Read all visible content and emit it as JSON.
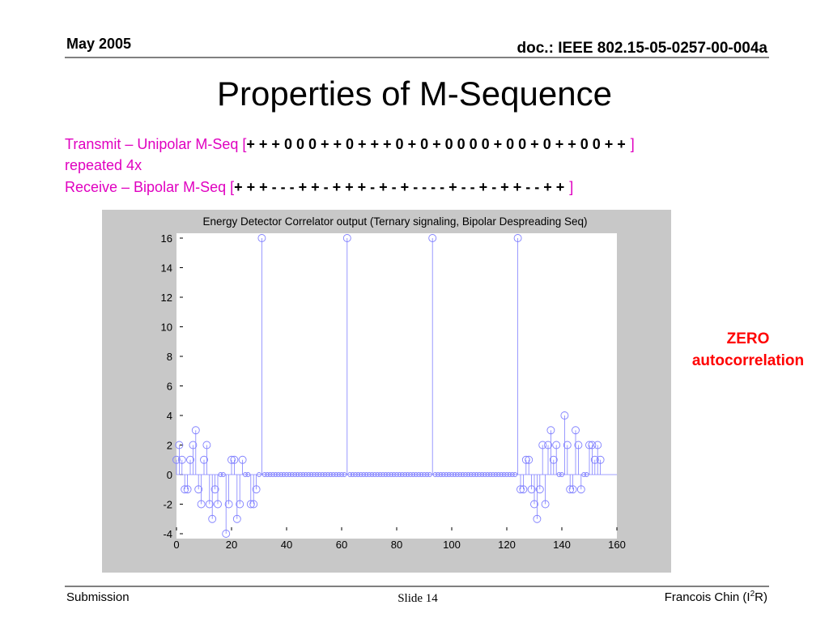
{
  "header": {
    "date": "May 2005",
    "doc": "doc.: IEEE 802.15-05-0257-00-004a"
  },
  "title": "Properties of M-Sequence",
  "transmit": {
    "label": "Transmit – Unipolar M-Seq [",
    "seq": "+ + + 0 0 0 + + 0 + + + 0 + 0 + 0 0 0 0 + 0 0 + 0 + + 0 0 + +",
    "close": "]",
    "note": "repeated 4x"
  },
  "receive": {
    "label": "Receive – Bipolar M-Seq [",
    "seq": "+ + + - - - + + - + + + - + - + - - - - + - - + - + + - - + +",
    "close": "]"
  },
  "annotation": [
    "ZERO",
    "autocorrelation"
  ],
  "footer": {
    "left": "Submission",
    "center": "Slide 14",
    "right": [
      "Francois Chin (I",
      "2",
      "R)"
    ]
  },
  "chart_data": {
    "type": "stem",
    "title": "Energy Detector Correlator output (Ternary signaling, Bipolar Despreading Seq)",
    "color": "#8080ff",
    "xlim": [
      0,
      160
    ],
    "xticks": [
      0,
      20,
      40,
      60,
      80,
      100,
      120,
      140,
      160
    ],
    "ylim": [
      -4,
      16
    ],
    "yticks": [
      -4,
      -2,
      0,
      2,
      4,
      6,
      8,
      10,
      12,
      14,
      16
    ],
    "x": [
      0,
      1,
      2,
      3,
      4,
      5,
      6,
      7,
      8,
      9,
      10,
      11,
      12,
      13,
      14,
      15,
      16,
      17,
      18,
      19,
      20,
      21,
      22,
      23,
      24,
      25,
      26,
      27,
      28,
      29,
      30,
      31,
      32,
      33,
      34,
      35,
      36,
      37,
      38,
      39,
      40,
      41,
      42,
      43,
      44,
      45,
      46,
      47,
      48,
      49,
      50,
      51,
      52,
      53,
      54,
      55,
      56,
      57,
      58,
      59,
      60,
      61,
      62,
      63,
      64,
      65,
      66,
      67,
      68,
      69,
      70,
      71,
      72,
      73,
      74,
      75,
      76,
      77,
      78,
      79,
      80,
      81,
      82,
      83,
      84,
      85,
      86,
      87,
      88,
      89,
      90,
      91,
      92,
      93,
      94,
      95,
      96,
      97,
      98,
      99,
      100,
      101,
      102,
      103,
      104,
      105,
      106,
      107,
      108,
      109,
      110,
      111,
      112,
      113,
      114,
      115,
      116,
      117,
      118,
      119,
      120,
      121,
      122,
      123,
      124,
      125,
      126,
      127,
      128,
      129,
      130,
      131,
      132,
      133,
      134,
      135,
      136,
      137,
      138,
      139,
      140,
      141,
      142,
      143,
      144,
      145,
      146,
      147,
      148,
      149,
      150,
      151,
      152,
      153,
      154
    ],
    "values": [
      1,
      2,
      1,
      -1,
      -1,
      1,
      2,
      3,
      -1,
      -2,
      1,
      2,
      -2,
      -3,
      -1,
      -2,
      0,
      0,
      -4,
      -2,
      1,
      1,
      -3,
      -2,
      1,
      0,
      0,
      -2,
      -2,
      -1,
      0,
      16,
      0,
      0,
      0,
      0,
      0,
      0,
      0,
      0,
      0,
      0,
      0,
      0,
      0,
      0,
      0,
      0,
      0,
      0,
      0,
      0,
      0,
      0,
      0,
      0,
      0,
      0,
      0,
      0,
      0,
      0,
      16,
      0,
      0,
      0,
      0,
      0,
      0,
      0,
      0,
      0,
      0,
      0,
      0,
      0,
      0,
      0,
      0,
      0,
      0,
      0,
      0,
      0,
      0,
      0,
      0,
      0,
      0,
      0,
      0,
      0,
      0,
      16,
      0,
      0,
      0,
      0,
      0,
      0,
      0,
      0,
      0,
      0,
      0,
      0,
      0,
      0,
      0,
      0,
      0,
      0,
      0,
      0,
      0,
      0,
      0,
      0,
      0,
      0,
      0,
      0,
      0,
      0,
      16,
      -1,
      -1,
      1,
      1,
      -1,
      -2,
      -3,
      -1,
      2,
      -2,
      2,
      3,
      1,
      2,
      0,
      0,
      4,
      2,
      -1,
      -1,
      3,
      2,
      -1,
      0,
      0,
      2,
      2,
      1,
      2,
      1
    ]
  }
}
